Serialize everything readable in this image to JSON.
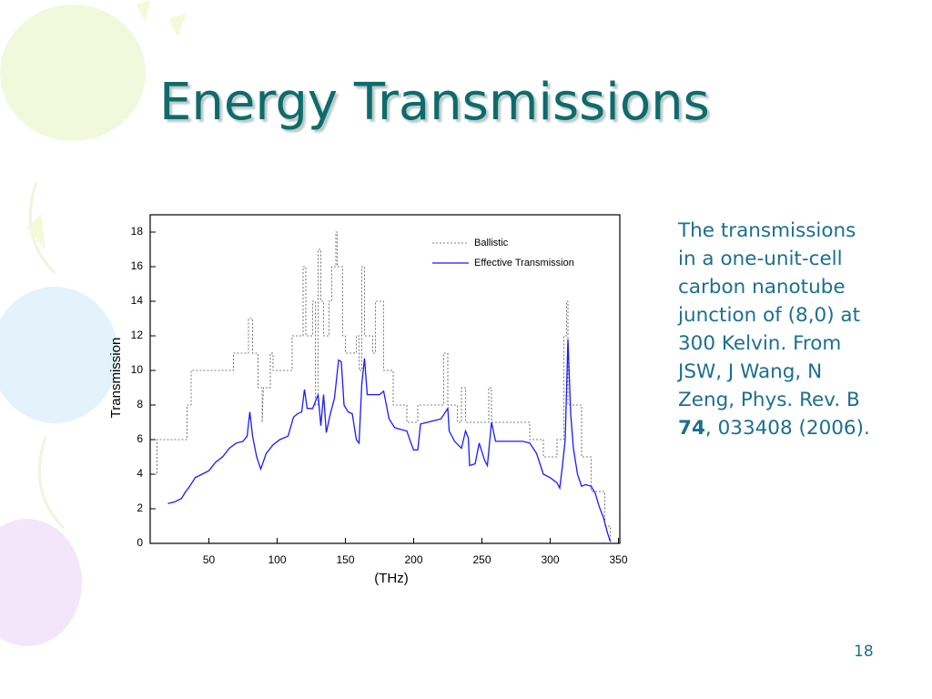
{
  "slide": {
    "title": "Energy Transmissions",
    "caption": [
      "The transmissions in a one-unit-cell carbon nanotube junction of (8,0) at 300 Kelvin. From JSW, J Wang, N Zeng, Phys. Rev. B ",
      "74",
      ", 033408 (2006)."
    ],
    "page_number": "18"
  },
  "chart_data": {
    "type": "line",
    "xlabel": "(THz)",
    "ylabel": "Transmission",
    "xlim": [
      7,
      351
    ],
    "ylim": [
      0,
      19
    ],
    "xticks": [
      50,
      100,
      150,
      200,
      250,
      300,
      350
    ],
    "yticks": [
      0,
      2,
      4,
      6,
      8,
      10,
      12,
      14,
      16,
      18
    ],
    "legend": "upper right",
    "series": [
      {
        "name": "Ballistic",
        "color": "#555555",
        "dashed": true,
        "x": [
          10,
          12,
          12,
          34,
          34,
          37,
          37,
          68,
          68,
          79,
          79,
          82,
          82,
          86,
          86,
          89,
          89,
          90,
          95,
          95,
          97,
          97,
          111,
          111,
          119,
          119,
          121,
          121,
          126,
          126,
          128,
          128,
          130,
          130,
          132,
          132,
          134,
          134,
          138,
          138,
          140,
          140,
          143,
          143,
          144,
          144,
          148,
          148,
          150,
          150,
          158,
          158,
          160,
          160,
          162,
          162,
          164,
          164,
          170,
          170,
          172,
          172,
          178,
          178,
          185,
          185,
          195,
          195,
          203,
          203,
          222,
          222,
          225,
          225,
          232,
          232,
          235,
          235,
          238,
          238,
          255,
          255,
          257,
          257,
          285,
          285,
          295,
          295,
          305,
          305,
          310,
          310,
          312,
          312,
          313,
          313,
          323,
          323,
          330,
          330,
          340,
          340,
          344,
          344
        ],
        "values": [
          4,
          4,
          6,
          6,
          8,
          8,
          10,
          10,
          11,
          11,
          13,
          13,
          11,
          11,
          9,
          9,
          7,
          9,
          9,
          11,
          11,
          10,
          10,
          12,
          12,
          16,
          16,
          12,
          12,
          14,
          14,
          8,
          8,
          17,
          17,
          14,
          14,
          12,
          12,
          14,
          14,
          16,
          16,
          18,
          18,
          16,
          16,
          12,
          12,
          11,
          11,
          12,
          12,
          10,
          10,
          16,
          16,
          12,
          12,
          11,
          11,
          14,
          14,
          10,
          10,
          8,
          8,
          7,
          7,
          8,
          8,
          11,
          11,
          8,
          8,
          7,
          7,
          9,
          9,
          7,
          7,
          9,
          9,
          7,
          7,
          6,
          6,
          5,
          5,
          6,
          6,
          12,
          12,
          14,
          14,
          8,
          8,
          5,
          5,
          3,
          3,
          1,
          1,
          0
        ]
      },
      {
        "name": "Effective Transmission",
        "color": "#1a1aff",
        "dashed": false,
        "x": [
          20,
          25,
          30,
          33,
          36,
          40,
          45,
          50,
          55,
          60,
          65,
          70,
          75,
          78,
          80,
          82,
          85,
          88,
          92,
          97,
          102,
          108,
          112,
          115,
          118,
          120,
          122,
          126,
          130,
          132,
          134,
          136,
          139,
          142,
          145,
          147,
          149,
          152,
          155,
          158,
          160,
          162,
          164,
          166,
          170,
          175,
          178,
          182,
          186,
          190,
          195,
          198,
          200,
          203,
          205,
          210,
          215,
          220,
          225,
          226,
          230,
          235,
          238,
          240,
          241,
          245,
          248,
          252,
          254,
          257,
          260,
          270,
          280,
          285,
          290,
          295,
          300,
          305,
          307,
          309,
          311,
          313,
          315,
          317,
          320,
          323,
          326,
          330,
          333,
          336,
          339,
          342,
          344
        ],
        "values": [
          2.3,
          2.4,
          2.6,
          3.0,
          3.3,
          3.8,
          4.0,
          4.2,
          4.7,
          5.0,
          5.5,
          5.8,
          5.9,
          6.2,
          7.6,
          6.2,
          5.0,
          4.3,
          5.2,
          5.7,
          6.0,
          6.2,
          7.3,
          7.5,
          7.6,
          8.9,
          7.8,
          7.8,
          8.6,
          6.8,
          8.6,
          6.4,
          7.5,
          8.4,
          10.6,
          10.5,
          8.0,
          7.6,
          7.5,
          6.0,
          5.8,
          9.2,
          10.7,
          8.6,
          8.6,
          8.6,
          8.8,
          7.2,
          6.7,
          6.6,
          6.5,
          5.8,
          5.4,
          5.4,
          6.9,
          7.0,
          7.1,
          7.2,
          7.8,
          6.5,
          5.9,
          5.5,
          6.5,
          6.1,
          4.5,
          4.6,
          5.8,
          4.8,
          4.5,
          7.0,
          5.9,
          5.9,
          5.9,
          5.8,
          5.2,
          4.0,
          3.8,
          3.5,
          3.2,
          4.5,
          6.0,
          11.8,
          7.5,
          5.5,
          4.0,
          3.3,
          3.4,
          3.3,
          2.9,
          2.1,
          1.5,
          0.6,
          0.1
        ]
      }
    ]
  }
}
